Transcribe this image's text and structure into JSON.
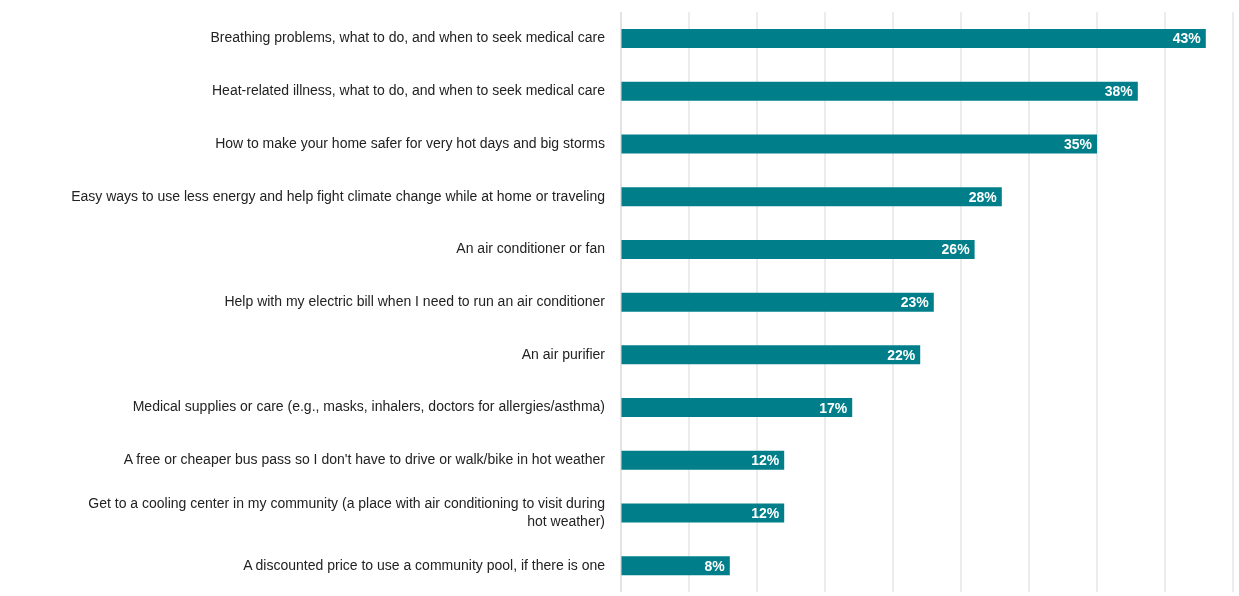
{
  "chart_data": {
    "type": "bar",
    "orientation": "horizontal",
    "categories": [
      "Breathing problems, what to do, and when to seek medical care",
      "Heat-related illness, what to do, and when to seek medical care",
      "How to make your home safer for very hot days and big storms",
      "Easy ways to use less energy and help fight climate change while at home or traveling",
      "An air conditioner or fan",
      "Help with my electric bill when I need to run an air conditioner",
      "An air purifier",
      "Medical supplies or care (e.g., masks, inhalers, doctors for allergies/asthma)",
      "A free or cheaper bus pass so I don't have to drive or walk/bike in hot weather",
      "Get to a cooling center in my community (a place with air conditioning to visit during hot weather)",
      "A discounted price to use a community pool, if there is one"
    ],
    "values": [
      43,
      38,
      35,
      28,
      26,
      23,
      22,
      17,
      12,
      12,
      8
    ],
    "value_labels": [
      "43%",
      "38%",
      "35%",
      "28%",
      "26%",
      "23%",
      "22%",
      "17%",
      "12%",
      "12%",
      "8%"
    ],
    "color": "#007f8a",
    "xlim": [
      0,
      45
    ],
    "xticks": [
      {
        "value": 0,
        "label": null
      },
      {
        "value": 5,
        "label": null
      },
      {
        "value": 10,
        "label": null
      },
      {
        "value": 15,
        "label": null
      },
      {
        "value": 20,
        "label": null
      },
      {
        "value": 25,
        "label": null
      },
      {
        "value": 30,
        "label": null
      },
      {
        "value": 35,
        "label": null
      },
      {
        "value": 40,
        "label": null
      },
      {
        "value": 45,
        "label": null
      }
    ],
    "tick_labels": "y",
    "grid": "x"
  }
}
